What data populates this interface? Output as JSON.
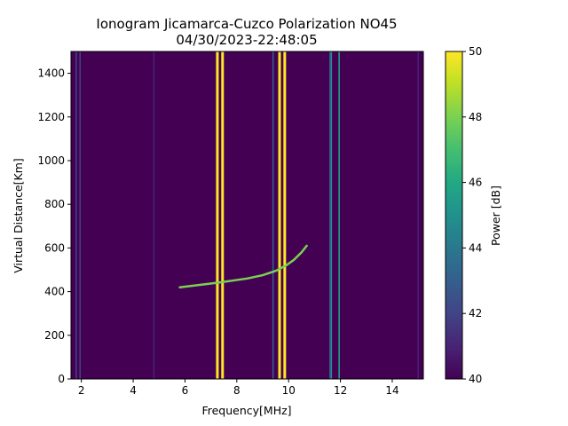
{
  "chart_data": {
    "type": "heatmap",
    "title_line1": "Ionogram Jicamarca-Cuzco Polarization NO45",
    "title_line2": "04/30/2023-22:48:05",
    "xlabel": "Frequency[MHz]",
    "ylabel": "Virtual Distance[Km]",
    "xlim": [
      1.6,
      15.2
    ],
    "ylim": [
      0,
      1500
    ],
    "xticks": [
      2,
      4,
      6,
      8,
      10,
      12,
      14
    ],
    "yticks": [
      0,
      200,
      400,
      600,
      800,
      1000,
      1200,
      1400
    ],
    "background_value": 40,
    "colorbar": {
      "label": "Power [dB]",
      "range": [
        40,
        50
      ],
      "ticks": [
        40,
        42,
        44,
        46,
        48,
        50
      ],
      "colormap": "viridis"
    },
    "vertical_interference_lines": [
      {
        "freq": 1.8,
        "power": 42
      },
      {
        "freq": 1.95,
        "power": 41.5
      },
      {
        "freq": 4.8,
        "power": 41
      },
      {
        "freq": 7.25,
        "power": 50
      },
      {
        "freq": 7.45,
        "power": 50
      },
      {
        "freq": 9.4,
        "power": 43
      },
      {
        "freq": 9.65,
        "power": 50
      },
      {
        "freq": 9.85,
        "power": 50
      },
      {
        "freq": 11.6,
        "power": 43
      },
      {
        "freq": 11.65,
        "power": 45
      },
      {
        "freq": 11.95,
        "power": 46
      },
      {
        "freq": 15.0,
        "power": 41
      }
    ],
    "trace": {
      "power": 48,
      "points": [
        {
          "freq": 5.8,
          "dist": 420
        },
        {
          "freq": 6.5,
          "dist": 430
        },
        {
          "freq": 7.2,
          "dist": 440
        },
        {
          "freq": 7.8,
          "dist": 450
        },
        {
          "freq": 8.4,
          "dist": 460
        },
        {
          "freq": 9.0,
          "dist": 475
        },
        {
          "freq": 9.5,
          "dist": 495
        },
        {
          "freq": 9.9,
          "dist": 520
        },
        {
          "freq": 10.2,
          "dist": 545
        },
        {
          "freq": 10.5,
          "dist": 580
        },
        {
          "freq": 10.7,
          "dist": 610
        }
      ]
    }
  }
}
